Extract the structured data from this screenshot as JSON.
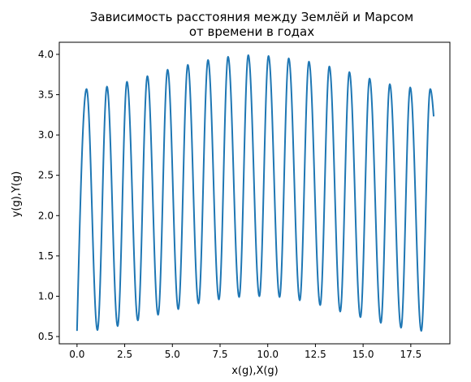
{
  "chart_data": {
    "type": "line",
    "title_lines": [
      "Зависимость расстояния между Землёй и Марсом",
      "от времени в годах"
    ],
    "xlabel": "x(g),X(g)",
    "ylabel": "y(g),Y(g)",
    "xlim": [
      -0.93,
      19.55
    ],
    "ylim": [
      0.41,
      4.15
    ],
    "x_ticks": [
      0.0,
      2.5,
      5.0,
      7.5,
      10.0,
      12.5,
      15.0,
      17.5
    ],
    "x_tick_labels": [
      "0.0",
      "2.5",
      "5.0",
      "7.5",
      "10.0",
      "12.5",
      "15.0",
      "17.5"
    ],
    "y_ticks": [
      0.5,
      1.0,
      1.5,
      2.0,
      2.5,
      3.0,
      3.5,
      4.0
    ],
    "y_tick_labels": [
      "0.5",
      "1.0",
      "1.5",
      "2.0",
      "2.5",
      "3.0",
      "3.5",
      "4.0"
    ],
    "grid": false,
    "series": [
      {
        "color": "#1f77b4",
        "x_start": 0.0,
        "x_end": 18.7,
        "y_start": 0.57,
        "maxima": [
          [
            0.5,
            3.57
          ],
          [
            1.57,
            3.6
          ],
          [
            2.62,
            3.66
          ],
          [
            3.69,
            3.73
          ],
          [
            4.75,
            3.81
          ],
          [
            5.81,
            3.87
          ],
          [
            6.87,
            3.93
          ],
          [
            7.92,
            3.97
          ],
          [
            8.98,
            3.99
          ],
          [
            10.04,
            3.98
          ],
          [
            11.1,
            3.95
          ],
          [
            12.16,
            3.91
          ],
          [
            13.23,
            3.85
          ],
          [
            14.28,
            3.78
          ],
          [
            15.34,
            3.7
          ],
          [
            16.4,
            3.63
          ],
          [
            17.47,
            3.59
          ],
          [
            18.52,
            3.57
          ]
        ],
        "minima": [
          [
            1.07,
            0.58
          ],
          [
            2.13,
            0.63
          ],
          [
            3.19,
            0.7
          ],
          [
            4.25,
            0.77
          ],
          [
            5.31,
            0.84
          ],
          [
            6.37,
            0.91
          ],
          [
            7.44,
            0.96
          ],
          [
            8.5,
            0.99
          ],
          [
            9.56,
            1.0
          ],
          [
            10.62,
            0.99
          ],
          [
            11.68,
            0.95
          ],
          [
            12.75,
            0.89
          ],
          [
            13.8,
            0.81
          ],
          [
            14.86,
            0.74
          ],
          [
            15.93,
            0.67
          ],
          [
            16.99,
            0.61
          ],
          [
            18.05,
            0.57
          ]
        ],
        "y_end": 3.23
      }
    ]
  }
}
